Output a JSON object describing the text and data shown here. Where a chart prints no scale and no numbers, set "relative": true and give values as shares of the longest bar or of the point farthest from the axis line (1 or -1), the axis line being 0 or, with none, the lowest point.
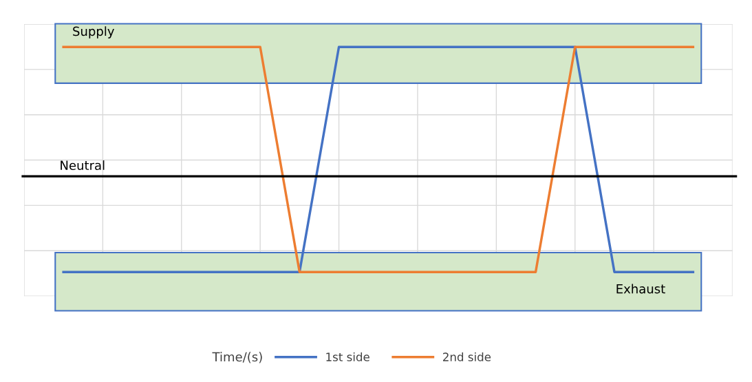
{
  "chart_data": {
    "type": "line",
    "relative": true,
    "annotations": [
      "Time/(s)"
    ],
    "categories": [
      null,
      null,
      null,
      null,
      null,
      null,
      null,
      null,
      null,
      null,
      null,
      null,
      null,
      null,
      null,
      null,
      null
    ],
    "series": [
      {
        "name": "1st side",
        "color": "#4472c4",
        "values": [
          -0.74,
          -0.74,
          -0.74,
          -0.74,
          -0.74,
          -0.74,
          -0.74,
          1,
          1,
          1,
          1,
          1,
          1,
          1,
          -0.74,
          -0.74,
          -0.74
        ]
      },
      {
        "name": "2nd side",
        "color": "#ed7d31",
        "values": [
          1,
          1,
          1,
          1,
          1,
          1,
          -0.74,
          -0.74,
          -0.74,
          -0.74,
          -0.74,
          -0.74,
          -0.74,
          1,
          1,
          1,
          1
        ]
      }
    ],
    "ref_lines": [
      {
        "axis": "y",
        "value": 0,
        "label": "Neutral",
        "color": "#000000"
      }
    ],
    "bands": [
      {
        "axis": "y",
        "from": 0.72,
        "to": 1.18,
        "label": "Supply",
        "color": "#d5e8c9"
      },
      {
        "axis": "y",
        "from": -1.04,
        "to": -0.59,
        "label": "Exhaust",
        "color": "#d5e8c9"
      }
    ],
    "grid": true,
    "legend": "bottom",
    "line_style": "solid",
    "marker": "none"
  }
}
